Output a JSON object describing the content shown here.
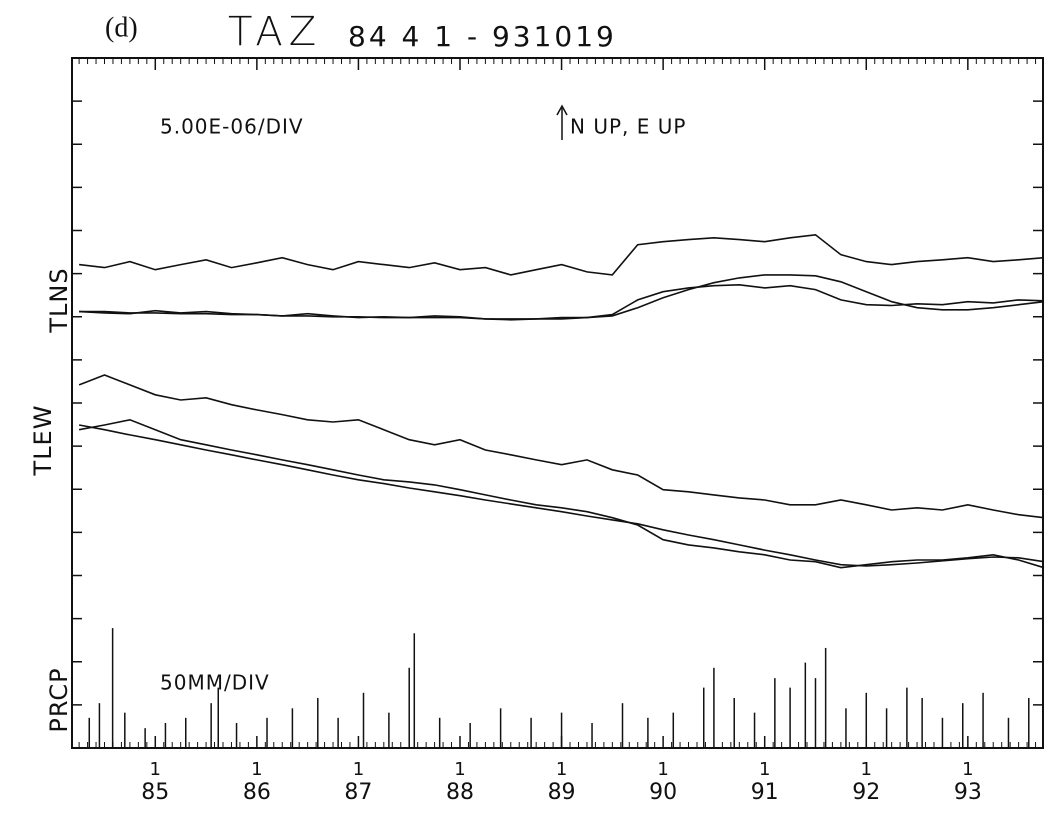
{
  "chart_data": {
    "type": "line",
    "panel": "(d)",
    "title": "TAZ",
    "subtitle": "84 4 1 - 931019",
    "annotations": [
      "5.00E-06/DIV",
      "N UP, E UP",
      "50MM/DIV"
    ],
    "side_labels": [
      "TLNS",
      "TLEW",
      "PRCP"
    ],
    "x": [
      1984.25,
      1984.5,
      1984.75,
      1985,
      1985.25,
      1985.5,
      1985.75,
      1986,
      1986.25,
      1986.5,
      1986.75,
      1987,
      1987.25,
      1987.5,
      1987.75,
      1988,
      1988.25,
      1988.5,
      1988.75,
      1989,
      1989.25,
      1989.5,
      1989.75,
      1990,
      1990.25,
      1990.5,
      1990.75,
      1991,
      1991.25,
      1991.5,
      1991.75,
      1992,
      1992.25,
      1992.5,
      1992.75,
      1993,
      1993.25,
      1993.5,
      1993.75
    ],
    "series": [
      {
        "color": "#111",
        "values": [
          11.21,
          11.14,
          11.28,
          11.09,
          11.21,
          11.32,
          11.14,
          11.25,
          11.37,
          11.21,
          11.09,
          11.28,
          11.21,
          11.14,
          11.25,
          11.09,
          11.14,
          10.97,
          11.09,
          11.21,
          11.04,
          10.97,
          11.67,
          11.74,
          11.79,
          11.83,
          11.79,
          11.74,
          11.83,
          11.9,
          11.44,
          11.28,
          11.21,
          11.28,
          11.32,
          11.37,
          11.28,
          11.32,
          11.37
        ]
      },
      {
        "color": "#111",
        "values": [
          10.12,
          10.09,
          10.07,
          10.14,
          10.09,
          10.12,
          10.07,
          10.05,
          10.02,
          10.07,
          10.02,
          9.98,
          10.0,
          9.98,
          10.02,
          10.0,
          9.95,
          9.93,
          9.95,
          9.98,
          9.98,
          10.05,
          10.39,
          10.58,
          10.67,
          10.72,
          10.74,
          10.67,
          10.72,
          10.63,
          10.39,
          10.28,
          10.26,
          10.3,
          10.28,
          10.35,
          10.32,
          10.39,
          10.37
        ]
      },
      {
        "color": "#111",
        "values": [
          10.12,
          10.12,
          10.09,
          10.09,
          10.07,
          10.07,
          10.05,
          10.05,
          10.02,
          10.02,
          10.0,
          10.0,
          9.98,
          9.98,
          9.98,
          9.98,
          9.95,
          9.95,
          9.95,
          9.95,
          9.98,
          10.02,
          10.21,
          10.44,
          10.63,
          10.79,
          10.9,
          10.97,
          10.97,
          10.95,
          10.81,
          10.58,
          10.35,
          10.21,
          10.16,
          10.16,
          10.21,
          10.28,
          10.35
        ]
      },
      {
        "color": "#111",
        "values": [
          8.42,
          8.65,
          8.42,
          8.19,
          8.07,
          8.12,
          7.96,
          7.84,
          7.73,
          7.61,
          7.56,
          7.61,
          7.38,
          7.15,
          7.03,
          7.15,
          6.91,
          6.8,
          6.68,
          6.57,
          6.68,
          6.45,
          6.33,
          5.99,
          5.94,
          5.87,
          5.8,
          5.75,
          5.64,
          5.64,
          5.75,
          5.64,
          5.52,
          5.57,
          5.52,
          5.64,
          5.52,
          5.41,
          5.34
        ]
      },
      {
        "color": "#111",
        "values": [
          7.38,
          7.49,
          7.61,
          7.38,
          7.15,
          7.03,
          6.91,
          6.8,
          6.68,
          6.57,
          6.45,
          6.33,
          6.22,
          6.17,
          6.1,
          5.99,
          5.87,
          5.75,
          5.64,
          5.57,
          5.48,
          5.34,
          5.17,
          4.83,
          4.71,
          4.64,
          4.55,
          4.48,
          4.36,
          4.32,
          4.18,
          4.25,
          4.32,
          4.36,
          4.36,
          4.41,
          4.48,
          4.36,
          4.18
        ]
      },
      {
        "color": "#111",
        "values": [
          7.49,
          7.38,
          7.26,
          7.15,
          7.03,
          6.91,
          6.8,
          6.68,
          6.57,
          6.45,
          6.33,
          6.22,
          6.13,
          6.03,
          5.94,
          5.85,
          5.75,
          5.66,
          5.57,
          5.48,
          5.38,
          5.29,
          5.2,
          5.06,
          4.94,
          4.83,
          4.71,
          4.59,
          4.48,
          4.36,
          4.25,
          4.22,
          4.25,
          4.29,
          4.34,
          4.39,
          4.43,
          4.41,
          4.32
        ]
      },
      {
        "color": "#111",
        "axis": "y2",
        "style": "spike",
        "x": [
          1984.35,
          1984.45,
          1984.58,
          1984.7,
          1984.9,
          1985.1,
          1985.3,
          1985.55,
          1985.62,
          1985.8,
          1986.1,
          1986.35,
          1986.6,
          1986.8,
          1987.05,
          1987.3,
          1987.5,
          1987.55,
          1987.8,
          1988.1,
          1988.4,
          1988.7,
          1989.0,
          1989.3,
          1989.6,
          1989.85,
          1990.1,
          1990.4,
          1990.5,
          1990.7,
          1990.9,
          1991.1,
          1991.25,
          1991.4,
          1991.5,
          1991.6,
          1991.8,
          1992.0,
          1992.2,
          1992.4,
          1992.55,
          1992.75,
          1992.95,
          1993.15,
          1993.4,
          1993.6
        ],
        "values": [
          35,
          52,
          139,
          41,
          23,
          29,
          35,
          52,
          70,
          29,
          35,
          46,
          58,
          35,
          64,
          41,
          93,
          133,
          35,
          29,
          46,
          35,
          41,
          29,
          52,
          35,
          41,
          70,
          93,
          58,
          41,
          81,
          70,
          99,
          81,
          116,
          46,
          64,
          46,
          70,
          58,
          35,
          52,
          64,
          35,
          58
        ]
      }
    ],
    "xlim": [
      1984.18,
      1993.74
    ],
    "xticks": [
      {
        "value": 1985,
        "label": "85",
        "month": "1"
      },
      {
        "value": 1986,
        "label": "86",
        "month": "1"
      },
      {
        "value": 1987,
        "label": "87",
        "month": "1"
      },
      {
        "value": 1988,
        "label": "88",
        "month": "1"
      },
      {
        "value": 1989,
        "label": "89",
        "month": "1"
      },
      {
        "value": 1990,
        "label": "90",
        "month": "1"
      },
      {
        "value": 1991,
        "label": "91",
        "month": "1"
      },
      {
        "value": 1992,
        "label": "92",
        "month": "1"
      },
      {
        "value": 1993,
        "label": "93",
        "month": "1"
      }
    ],
    "ylim": [
      0,
      16
    ],
    "yticks": [
      0,
      1,
      2,
      3,
      4,
      5,
      6,
      7,
      8,
      9,
      10,
      11,
      12,
      13,
      14,
      15,
      16
    ],
    "y2lim": [
      0,
      800
    ]
  }
}
